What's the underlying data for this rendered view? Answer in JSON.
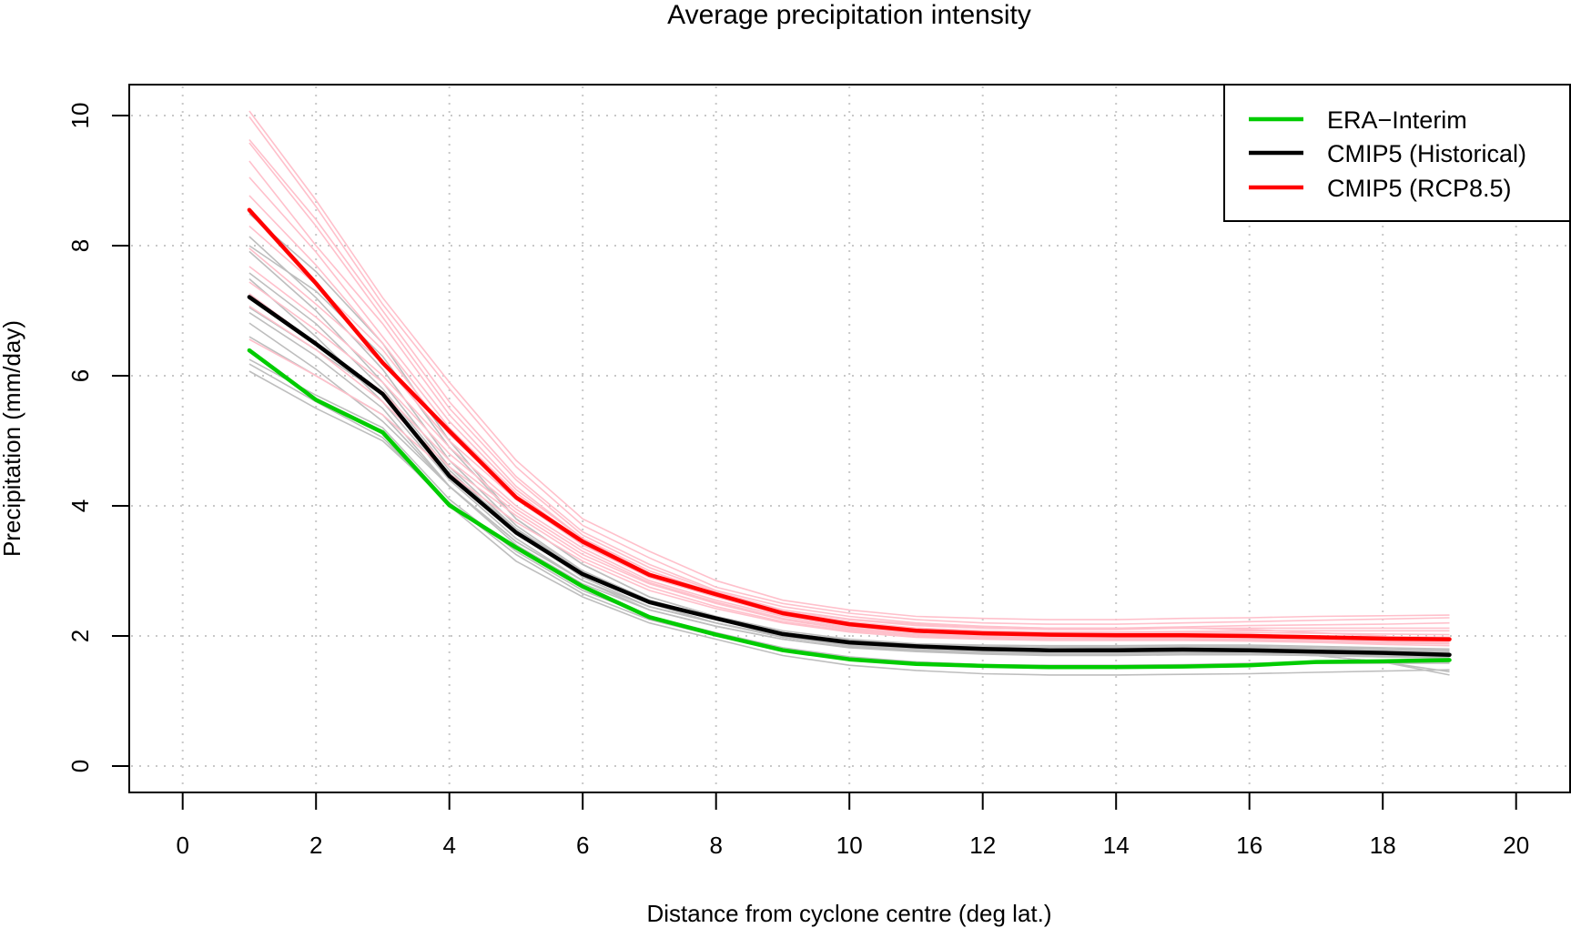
{
  "chart_data": {
    "type": "line",
    "title": "Average precipitation intensity",
    "xlabel": "Distance from cyclone centre (deg lat.)",
    "ylabel": "Precipitation (mm/day)",
    "xlim": [
      -0.8,
      22.9
    ],
    "ylim": [
      -0.4,
      10.5
    ],
    "x_ticks": [
      0,
      2,
      4,
      6,
      8,
      10,
      12,
      14,
      16,
      18,
      20
    ],
    "x_tick_labels": [
      "0",
      "2",
      "4",
      "6",
      "8",
      "10",
      "12",
      "14",
      "16",
      "18",
      "20"
    ],
    "y_ticks": [
      0,
      2,
      4,
      6,
      8,
      10
    ],
    "y_tick_labels": [
      "0",
      "2",
      "4",
      "6",
      "8",
      "10"
    ],
    "grid": true,
    "legend_position": "top-right",
    "x": [
      1,
      2,
      3,
      4,
      5,
      6,
      7,
      8,
      9,
      10,
      11,
      12,
      13,
      14,
      15,
      16,
      17,
      18,
      19
    ],
    "series": [
      {
        "name": "ERA−Interim",
        "color": "#00CC00",
        "values": [
          6.39,
          5.63,
          5.13,
          4.01,
          3.36,
          2.76,
          2.29,
          2.02,
          1.78,
          1.64,
          1.57,
          1.54,
          1.52,
          1.52,
          1.53,
          1.55,
          1.6,
          1.61,
          1.63
        ]
      },
      {
        "name": "CMIP5 (Historical)",
        "color": "#000000",
        "values": [
          7.21,
          6.49,
          5.72,
          4.46,
          3.59,
          2.95,
          2.52,
          2.27,
          2.03,
          1.9,
          1.84,
          1.8,
          1.78,
          1.78,
          1.79,
          1.78,
          1.76,
          1.74,
          1.71
        ]
      },
      {
        "name": "CMIP5 (RCP8.5)",
        "color": "#FF0000",
        "values": [
          8.55,
          7.42,
          6.2,
          5.15,
          4.13,
          3.45,
          2.94,
          2.64,
          2.35,
          2.18,
          2.08,
          2.04,
          2.02,
          2.01,
          2.01,
          2.0,
          1.98,
          1.96,
          1.95
        ]
      }
    ],
    "ensemble_historical": {
      "color": "#BEBEBE",
      "members": [
        [
          8.49,
          7.6,
          6.5,
          5.0,
          3.8,
          3.1,
          2.6,
          2.3,
          2.05,
          1.9,
          1.83,
          1.78,
          1.76,
          1.75,
          1.75,
          1.74,
          1.72,
          1.7,
          1.68
        ],
        [
          8.14,
          7.2,
          6.1,
          4.7,
          3.7,
          3.0,
          2.55,
          2.25,
          2.0,
          1.87,
          1.8,
          1.76,
          1.74,
          1.74,
          1.74,
          1.73,
          1.7,
          1.6,
          1.45
        ],
        [
          7.91,
          7.0,
          5.9,
          4.6,
          3.65,
          2.95,
          2.5,
          2.2,
          1.98,
          1.85,
          1.78,
          1.74,
          1.72,
          1.72,
          1.72,
          1.72,
          1.7,
          1.68,
          1.66
        ],
        [
          7.58,
          6.8,
          5.8,
          4.55,
          3.6,
          2.9,
          2.45,
          2.2,
          1.98,
          1.86,
          1.8,
          1.77,
          1.75,
          1.75,
          1.76,
          1.76,
          1.75,
          1.73,
          1.72
        ],
        [
          7.49,
          6.6,
          5.6,
          4.4,
          3.5,
          2.85,
          2.45,
          2.2,
          2.0,
          1.88,
          1.82,
          1.8,
          1.8,
          1.81,
          1.82,
          1.82,
          1.8,
          1.78,
          1.76
        ],
        [
          6.97,
          6.3,
          5.5,
          4.3,
          3.45,
          2.85,
          2.4,
          2.15,
          1.95,
          1.83,
          1.77,
          1.73,
          1.71,
          1.71,
          1.72,
          1.72,
          1.7,
          1.6,
          1.4
        ],
        [
          6.81,
          6.1,
          5.3,
          4.3,
          3.4,
          2.8,
          2.4,
          2.15,
          1.95,
          1.82,
          1.76,
          1.72,
          1.7,
          1.7,
          1.71,
          1.71,
          1.7,
          1.68,
          1.66
        ],
        [
          6.25,
          5.7,
          5.2,
          4.1,
          3.3,
          2.7,
          2.3,
          2.05,
          1.82,
          1.68,
          1.6,
          1.56,
          1.54,
          1.54,
          1.55,
          1.56,
          1.58,
          1.58,
          1.58
        ],
        [
          6.18,
          5.6,
          5.05,
          4.0,
          3.15,
          2.6,
          2.2,
          1.95,
          1.7,
          1.55,
          1.47,
          1.42,
          1.4,
          1.4,
          1.41,
          1.42,
          1.44,
          1.46,
          1.48
        ],
        [
          6.07,
          5.5,
          5.0,
          4.05,
          3.25,
          2.65,
          2.25,
          2.0,
          1.78,
          1.66,
          1.6,
          1.56,
          1.55,
          1.55,
          1.56,
          1.58,
          1.6,
          1.6,
          1.6
        ],
        [
          7.05,
          6.4,
          5.7,
          4.5,
          3.65,
          3.0,
          2.55,
          2.28,
          2.05,
          1.93,
          1.87,
          1.84,
          1.83,
          1.83,
          1.84,
          1.84,
          1.82,
          1.8,
          1.78
        ],
        [
          8.0,
          7.3,
          6.3,
          4.9,
          3.8,
          3.1,
          2.6,
          2.3,
          2.08,
          1.95,
          1.88,
          1.86,
          1.85,
          1.85,
          1.86,
          1.86,
          1.84,
          1.82,
          1.8
        ],
        [
          6.6,
          6.0,
          5.4,
          4.3,
          3.45,
          2.85,
          2.45,
          2.2,
          1.98,
          1.86,
          1.8,
          1.78,
          1.77,
          1.78,
          1.79,
          1.8,
          1.78,
          1.76,
          1.74
        ]
      ]
    },
    "ensemble_rcp85": {
      "color": "#FFC0CB",
      "members": [
        [
          10.07,
          8.7,
          7.2,
          5.9,
          4.7,
          3.8,
          3.3,
          2.85,
          2.55,
          2.4,
          2.3,
          2.27,
          2.25,
          2.25,
          2.27,
          2.28,
          2.3,
          2.31,
          2.32
        ],
        [
          9.98,
          8.6,
          7.1,
          5.8,
          4.6,
          3.7,
          3.2,
          2.75,
          2.5,
          2.35,
          2.25,
          2.2,
          2.18,
          2.18,
          2.2,
          2.22,
          2.24,
          2.26,
          2.28
        ],
        [
          9.63,
          8.4,
          7.0,
          5.6,
          4.45,
          3.6,
          3.1,
          2.7,
          2.45,
          2.3,
          2.2,
          2.15,
          2.12,
          2.12,
          2.14,
          2.16,
          2.17,
          2.18,
          2.2
        ],
        [
          9.58,
          8.3,
          6.9,
          5.5,
          4.4,
          3.55,
          3.05,
          2.68,
          2.4,
          2.26,
          2.18,
          2.14,
          2.12,
          2.12,
          2.12,
          2.1,
          2.05,
          2.0,
          1.9
        ],
        [
          9.05,
          7.9,
          6.6,
          5.3,
          4.25,
          3.5,
          3.0,
          2.65,
          2.38,
          2.22,
          2.12,
          2.08,
          2.06,
          2.05,
          2.05,
          2.05,
          2.04,
          2.03,
          2.02
        ],
        [
          8.77,
          7.7,
          6.5,
          5.2,
          4.2,
          3.45,
          2.95,
          2.62,
          2.35,
          2.2,
          2.1,
          2.05,
          2.03,
          2.02,
          2.02,
          2.02,
          2.0,
          1.99,
          1.98
        ],
        [
          7.96,
          7.1,
          6.2,
          5.0,
          4.1,
          3.4,
          2.9,
          2.6,
          2.32,
          2.16,
          2.07,
          2.03,
          2.0,
          1.99,
          1.99,
          1.98,
          1.96,
          1.94,
          1.92
        ],
        [
          7.68,
          6.9,
          6.0,
          4.9,
          4.0,
          3.35,
          2.85,
          2.55,
          2.3,
          2.14,
          2.05,
          2.0,
          1.98,
          1.97,
          1.97,
          1.96,
          1.94,
          1.92,
          1.9
        ],
        [
          7.44,
          6.7,
          5.9,
          4.8,
          3.95,
          3.3,
          2.82,
          2.52,
          2.27,
          2.12,
          2.03,
          1.99,
          1.97,
          1.96,
          1.96,
          1.95,
          1.93,
          1.91,
          1.89
        ],
        [
          7.26,
          6.5,
          5.75,
          4.7,
          3.9,
          3.25,
          2.8,
          2.5,
          2.25,
          2.1,
          2.02,
          1.98,
          1.96,
          1.95,
          1.95,
          1.94,
          1.9,
          1.87,
          1.85
        ],
        [
          7.07,
          6.4,
          5.6,
          4.6,
          3.85,
          3.2,
          2.75,
          2.45,
          2.22,
          2.08,
          2.0,
          1.97,
          1.95,
          1.95,
          1.95,
          1.94,
          1.92,
          1.9,
          1.88
        ],
        [
          6.56,
          6.0,
          5.4,
          4.5,
          3.75,
          3.15,
          2.7,
          2.42,
          2.2,
          2.06,
          1.98,
          1.95,
          1.93,
          1.93,
          1.93,
          1.92,
          1.9,
          1.89,
          1.88
        ],
        [
          8.3,
          7.4,
          6.4,
          5.1,
          4.15,
          3.45,
          2.95,
          2.62,
          2.36,
          2.2,
          2.12,
          2.08,
          2.06,
          2.06,
          2.07,
          2.08,
          2.08,
          2.08,
          2.08
        ],
        [
          9.3,
          8.0,
          6.8,
          5.4,
          4.3,
          3.5,
          3.0,
          2.66,
          2.4,
          2.25,
          2.16,
          2.12,
          2.1,
          2.1,
          2.12,
          2.12,
          2.12,
          2.12,
          2.12
        ]
      ]
    },
    "legend": [
      {
        "label": "ERA−Interim",
        "color": "#00CC00"
      },
      {
        "label": "CMIP5 (Historical)",
        "color": "#000000"
      },
      {
        "label": "CMIP5 (RCP8.5)",
        "color": "#FF0000"
      }
    ]
  }
}
